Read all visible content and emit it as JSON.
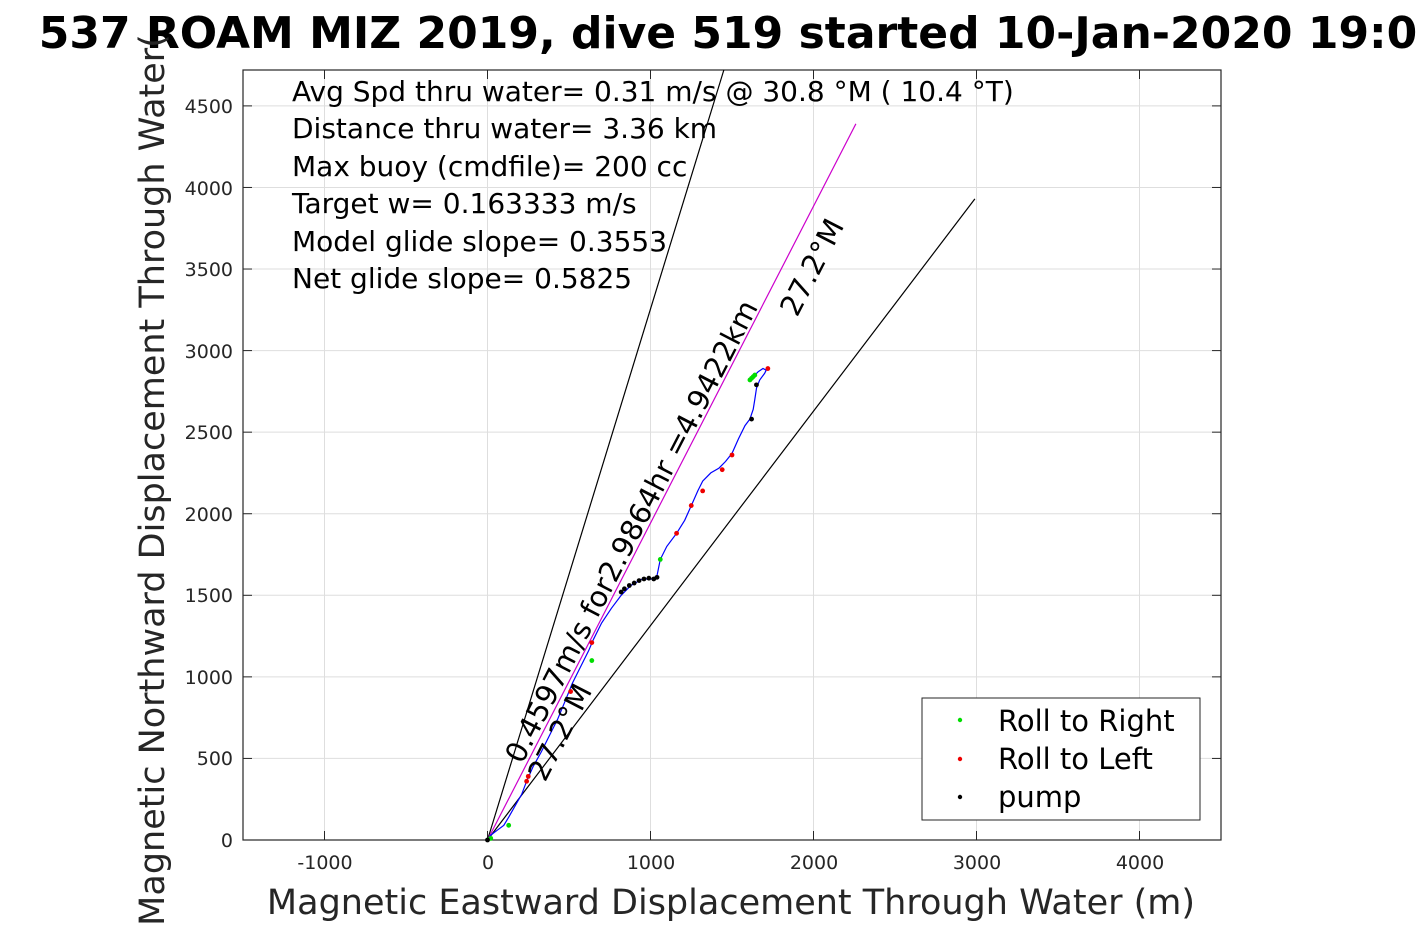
{
  "chart_data": {
    "type": "scatter",
    "title": "537 ROAM MIZ 2019, dive 519 started 10-Jan-2020 19:0",
    "xlabel": "Magnetic Eastward Displacement Through Water (m)",
    "ylabel": "Magnetic Northward Displacement Through Water(",
    "xlim": [
      -1500,
      4500
    ],
    "ylim": [
      0,
      4720
    ],
    "xticks": [
      -1000,
      0,
      1000,
      2000,
      3000,
      4000
    ],
    "xtick_labels": [
      "-1000",
      "0",
      "1000",
      "2000",
      "3000",
      "4000"
    ],
    "yticks": [
      0,
      500,
      1000,
      1500,
      2000,
      2500,
      3000,
      3500,
      4000,
      4500
    ],
    "ytick_labels": [
      "0",
      "500",
      "1000",
      "1500",
      "2000",
      "2500",
      "3000",
      "3500",
      "4000",
      "4500"
    ],
    "grid": true,
    "legend_position": "bottom-right",
    "stats": [
      "Avg Spd thru water=  0.31 m/s @  30.8 °M ( 10.4 °T)",
      "Distance thru water=  3.36 km",
      "Max buoy (cmdfile)= 200 cc",
      "Target w= 0.163333 m/s",
      "Model glide slope= 0.3553",
      "Net glide slope= 0.5825"
    ],
    "annotations": {
      "main": "0.4597m/s for2.9864hr =4.9422km",
      "heading_far": "27.2°M",
      "heading_near": "27.2°M"
    },
    "reference_lines": [
      {
        "name": "cone-left",
        "x": [
          0,
          1450
        ],
        "y": [
          0,
          4720
        ],
        "color": "#000000"
      },
      {
        "name": "cone-right",
        "x": [
          0,
          2990
        ],
        "y": [
          0,
          3930
        ],
        "color": "#000000"
      },
      {
        "name": "mean-track",
        "x": [
          0,
          2260
        ],
        "y": [
          0,
          4390
        ],
        "color": "#cc00cc"
      }
    ],
    "track": {
      "color": "#0000ff",
      "x": [
        0,
        20,
        60,
        100,
        130,
        170,
        210,
        240,
        280,
        330,
        380,
        430,
        480,
        520,
        570,
        620,
        650,
        700,
        760,
        820,
        880,
        950,
        1010,
        1040,
        1060,
        1100,
        1160,
        1210,
        1250,
        1290,
        1320,
        1370,
        1420,
        1460,
        1500,
        1540,
        1580,
        1610,
        1630,
        1640,
        1650,
        1670,
        1700,
        1710,
        1690,
        1660,
        1630
      ],
      "y": [
        0,
        30,
        60,
        90,
        140,
        210,
        280,
        360,
        450,
        540,
        640,
        740,
        860,
        960,
        1060,
        1160,
        1230,
        1330,
        1420,
        1500,
        1560,
        1600,
        1600,
        1620,
        1720,
        1800,
        1880,
        1960,
        2050,
        2140,
        2200,
        2250,
        2280,
        2320,
        2370,
        2460,
        2540,
        2580,
        2640,
        2700,
        2770,
        2820,
        2860,
        2880,
        2890,
        2870,
        2840
      ]
    },
    "series": [
      {
        "name": "Roll to Right",
        "color": "#00dd00",
        "x": [
          20,
          130,
          640,
          1060,
          1610,
          1620,
          1630,
          1640
        ],
        "y": [
          10,
          90,
          1100,
          1720,
          2820,
          2830,
          2840,
          2850
        ]
      },
      {
        "name": "Roll to Left",
        "color": "#ee0000",
        "x": [
          240,
          250,
          510,
          640,
          1160,
          1250,
          1320,
          1440,
          1500,
          1720
        ],
        "y": [
          360,
          390,
          910,
          1210,
          1880,
          2050,
          2140,
          2270,
          2360,
          2890
        ]
      },
      {
        "name": "pump",
        "color": "#000000",
        "x": [
          0,
          820,
          840,
          870,
          900,
          930,
          960,
          990,
          1020,
          1040,
          1620,
          1650
        ],
        "y": [
          0,
          1520,
          1540,
          1560,
          1575,
          1590,
          1600,
          1605,
          1600,
          1610,
          2580,
          2790
        ]
      }
    ]
  }
}
